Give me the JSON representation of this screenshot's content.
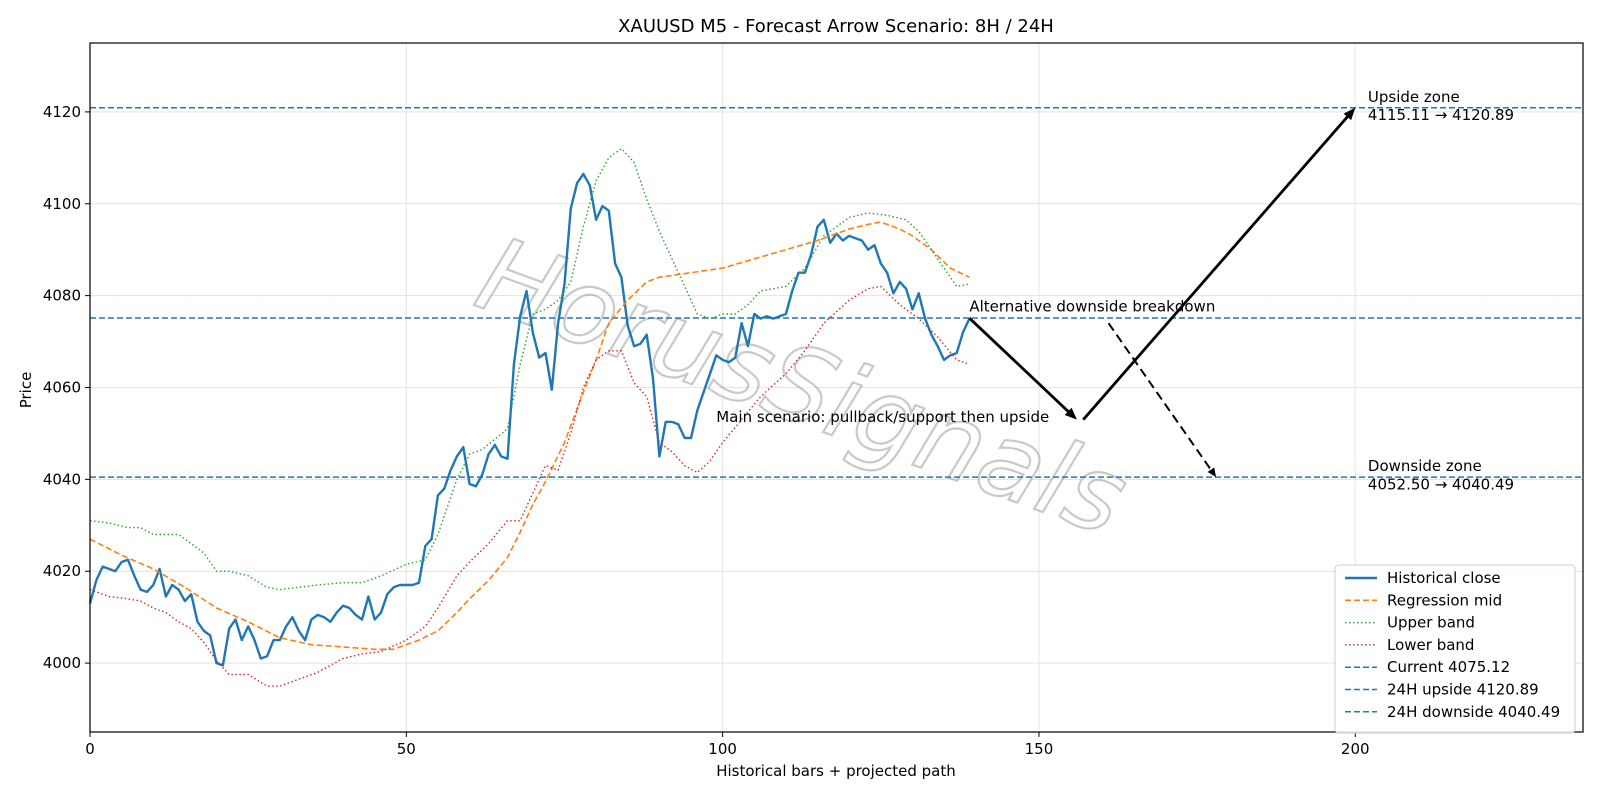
{
  "chart_data": {
    "type": "line",
    "title": "XAUUSD M5 - Forecast Arrow Scenario: 8H / 24H",
    "xlabel": "Historical bars + projected path",
    "ylabel": "Price",
    "xlim": [
      0,
      236
    ],
    "ylim": [
      3985,
      4135
    ],
    "xticks": [
      0,
      50,
      100,
      150,
      200
    ],
    "yticks": [
      4000,
      4020,
      4040,
      4060,
      4080,
      4100,
      4120
    ],
    "grid": true,
    "legend_position": "lower-right",
    "watermark": "HorusSignals",
    "colors": {
      "close": "#1f77b4",
      "mid": "#ff7f0e",
      "upper": "#2ca02c",
      "lower": "#d62728",
      "hline": "#1f77b4",
      "arrow": "#000000"
    },
    "series": [
      {
        "name": "Historical close",
        "style": "solid",
        "x": [
          0,
          1,
          2,
          3,
          4,
          5,
          6,
          7,
          8,
          9,
          10,
          11,
          12,
          13,
          14,
          15,
          16,
          17,
          18,
          19,
          20,
          21,
          22,
          23,
          24,
          25,
          26,
          27,
          28,
          29,
          30,
          31,
          32,
          33,
          34,
          35,
          36,
          37,
          38,
          39,
          40,
          41,
          42,
          43,
          44,
          45,
          46,
          47,
          48,
          49,
          50,
          51,
          52,
          53,
          54,
          55,
          56,
          57,
          58,
          59,
          60,
          61,
          62,
          63,
          64,
          65,
          66,
          67,
          68,
          69,
          70,
          71,
          72,
          73,
          74,
          75,
          76,
          77,
          78,
          79,
          80,
          81,
          82,
          83,
          84,
          85,
          86,
          87,
          88,
          89,
          90,
          91,
          92,
          93,
          94,
          95,
          96,
          97,
          98,
          99,
          100,
          101,
          102,
          103,
          104,
          105,
          106,
          107,
          108,
          109,
          110,
          111,
          112,
          113,
          114,
          115,
          116,
          117,
          118,
          119,
          120,
          121,
          122,
          123,
          124,
          125,
          126,
          127,
          128,
          129,
          130,
          131,
          132,
          133,
          134,
          135,
          136,
          137,
          138,
          139
        ],
        "values": [
          4013,
          4018,
          4021,
          4020.5,
          4020,
          4022,
          4022.5,
          4019,
          4016,
          4015.5,
          4017,
          4020.5,
          4014.5,
          4017,
          4016,
          4013.5,
          4015,
          4009,
          4007,
          4006,
          4000,
          3999.5,
          4007.5,
          4009.5,
          4005,
          4008,
          4005,
          4001,
          4001.5,
          4005,
          4005,
          4008,
          4010,
          4007,
          4005,
          4009.5,
          4010.5,
          4010,
          4009,
          4011,
          4012.5,
          4012,
          4010.5,
          4009.5,
          4014.5,
          4009.5,
          4011,
          4015,
          4016.5,
          4017,
          4017,
          4017,
          4017.5,
          4025.5,
          4027,
          4036.5,
          4038,
          4042,
          4045,
          4047,
          4039,
          4038.5,
          4041,
          4045.5,
          4047.5,
          4045,
          4044.5,
          4065,
          4075.5,
          4081,
          4072,
          4066.5,
          4067.5,
          4059.5,
          4074,
          4082.5,
          4099,
          4104.5,
          4106.5,
          4104,
          4096.5,
          4099.5,
          4098.5,
          4087,
          4084,
          4073.5,
          4069,
          4069.5,
          4071.5,
          4062,
          4045,
          4052.5,
          4052.5,
          4052,
          4049,
          4049,
          4055,
          4059,
          4063,
          4067,
          4066,
          4065.5,
          4066.5,
          4074,
          4069,
          4076,
          4075,
          4075.5,
          4075,
          4075.5,
          4076,
          4081,
          4085,
          4085,
          4089,
          4095,
          4096.5,
          4091.5,
          4093.5,
          4092,
          4093,
          4092.5,
          4092,
          4090,
          4091,
          4087,
          4085,
          4080.5,
          4083,
          4081.5,
          4077,
          4080.5,
          4075,
          4071.5,
          4069,
          4066,
          4067,
          4067.5,
          4072,
          4075
        ]
      },
      {
        "name": "Regression mid",
        "style": "dashed",
        "x": [
          0,
          5,
          10,
          15,
          20,
          25,
          30,
          35,
          40,
          45,
          48,
          50,
          52,
          55,
          58,
          60,
          63,
          66,
          68,
          70,
          72,
          75,
          78,
          80,
          82,
          85,
          88,
          90,
          95,
          100,
          105,
          110,
          115,
          120,
          123,
          125,
          128,
          130,
          133,
          136,
          139
        ],
        "values": [
          4027,
          4023.5,
          4020.5,
          4016.5,
          4012,
          4009,
          4005.5,
          4004,
          4003.5,
          4003,
          4003,
          4004,
          4005,
          4007,
          4011,
          4014,
          4018,
          4023,
          4028.5,
          4034.5,
          4039.5,
          4048,
          4059,
          4066,
          4074,
          4079,
          4083,
          4084,
          4085,
          4086,
          4088,
          4090,
          4092,
          4094.5,
          4095.5,
          4096,
          4094.5,
          4093,
          4090,
          4086,
          4084
        ]
      },
      {
        "name": "Upper band",
        "style": "dotted",
        "x": [
          0,
          3,
          6,
          8,
          10,
          12,
          14,
          16,
          18,
          20,
          22,
          25,
          28,
          30,
          33,
          36,
          40,
          43,
          46,
          50,
          53,
          55,
          58,
          60,
          62,
          66,
          68,
          70,
          72,
          74,
          76,
          78,
          80,
          82,
          84,
          86,
          88,
          90,
          92,
          94,
          96,
          98,
          100,
          102,
          104,
          106,
          110,
          113,
          116,
          120,
          123,
          126,
          129,
          131,
          133,
          135,
          137,
          139
        ],
        "values": [
          4031,
          4030.5,
          4029.5,
          4029.5,
          4028,
          4028,
          4028,
          4026,
          4024,
          4020,
          4020,
          4019,
          4016.5,
          4016,
          4016.5,
          4017,
          4017.5,
          4017.5,
          4019,
          4021.5,
          4022.5,
          4028,
          4040,
          4045.5,
          4046.5,
          4051,
          4065,
          4076,
          4077,
          4079,
          4083,
          4095,
          4105,
          4110,
          4112,
          4109,
          4101,
          4094,
          4088,
          4082,
          4076,
          4075,
          4076,
          4076,
          4078,
          4081,
          4082,
          4086,
          4093,
          4097,
          4098,
          4097.5,
          4096.5,
          4094,
          4090,
          4086,
          4082,
          4082.5
        ]
      },
      {
        "name": "Lower band",
        "style": "dotted",
        "x": [
          0,
          3,
          6,
          8,
          10,
          12,
          14,
          16,
          18,
          20,
          22,
          25,
          28,
          30,
          33,
          36,
          40,
          43,
          46,
          50,
          53,
          55,
          58,
          60,
          63,
          66,
          68,
          70,
          72,
          74,
          76,
          78,
          80,
          82,
          84,
          86,
          88,
          90,
          92,
          94,
          96,
          98,
          100,
          103,
          106,
          110,
          113,
          116,
          120,
          123,
          125,
          128,
          131,
          134,
          137,
          139
        ],
        "values": [
          4016,
          4014.5,
          4014,
          4013.5,
          4012,
          4011,
          4009,
          4007.5,
          4004.5,
          4000.5,
          3997.5,
          3997.5,
          3995,
          3995,
          3996.5,
          3998,
          4001,
          4002,
          4002.5,
          4005,
          4008,
          4012,
          4019,
          4022,
          4026,
          4031,
          4031,
          4037,
          4043,
          4042,
          4050,
          4060,
          4066,
          4068,
          4068,
          4061,
          4058,
          4048,
          4046,
          4043,
          4041.5,
          4044,
          4048,
          4053,
          4058,
          4063,
          4068,
          4074,
          4079,
          4081.5,
          4082,
          4078,
          4075,
          4071,
          4066,
          4065
        ]
      }
    ],
    "reference_lines": [
      {
        "name": "Current 4075.12",
        "y": 4075.12
      },
      {
        "name": "24H upside 4120.89",
        "y": 4120.89
      },
      {
        "name": "24H downside 4040.49",
        "y": 4040.49
      }
    ],
    "arrows": [
      {
        "role": "main-down",
        "from": [
          139,
          4075.12
        ],
        "to": [
          156,
          4053
        ],
        "style": "solid"
      },
      {
        "role": "main-up",
        "from": [
          157,
          4053
        ],
        "to": [
          200,
          4120.89
        ],
        "style": "solid"
      },
      {
        "role": "alternative",
        "from": [
          161,
          4074
        ],
        "to": [
          178,
          4040.49
        ],
        "style": "dashed"
      }
    ],
    "annotations": [
      {
        "role": "main",
        "text": "Main scenario: pullback/support then upside",
        "x": 99,
        "y": 4052.5
      },
      {
        "role": "alternative",
        "text": "Alternative downside breakdown",
        "x": 139,
        "y": 4076.5
      },
      {
        "role": "upside-1",
        "text": "Upside zone",
        "x": 202,
        "y": 4122.2
      },
      {
        "role": "upside-2",
        "text": "4115.11 → 4120.89",
        "x": 202,
        "y": 4118.2
      },
      {
        "role": "downside-1",
        "text": "Downside zone",
        "x": 202,
        "y": 4041.8
      },
      {
        "role": "downside-2",
        "text": "4052.50 → 4040.49",
        "x": 202,
        "y": 4037.8
      }
    ]
  }
}
